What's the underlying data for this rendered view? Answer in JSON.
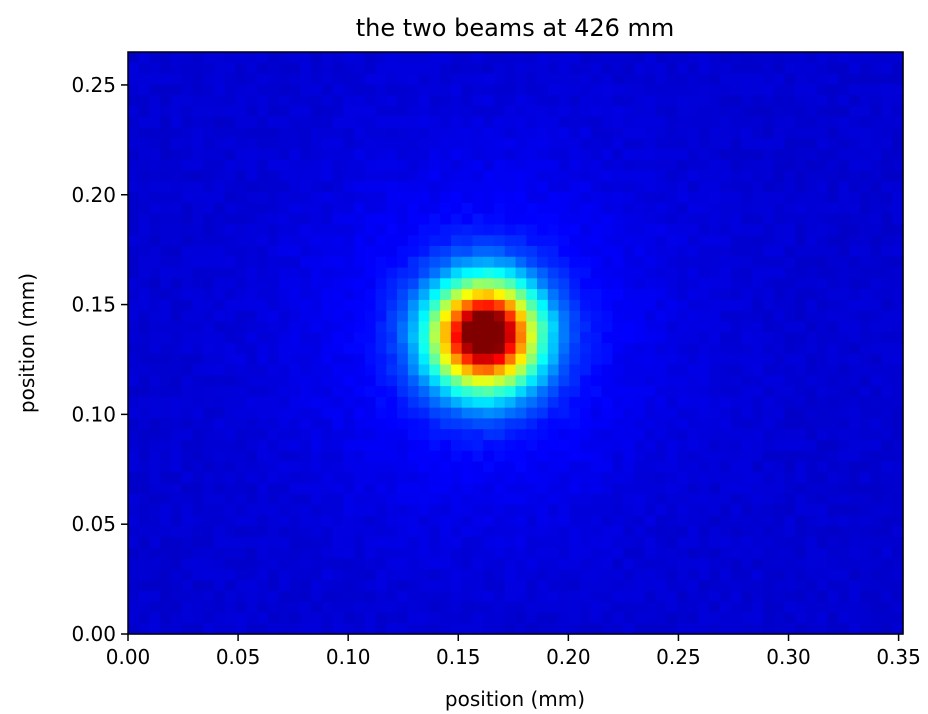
{
  "chart_data": {
    "type": "heatmap",
    "title": "the two beams at 426 mm",
    "xlabel": "position (mm)",
    "ylabel": "position (mm)",
    "xlim": [
      0.0,
      0.352
    ],
    "ylim": [
      0.0,
      0.265
    ],
    "x_ticks": [
      "0.00",
      "0.05",
      "0.10",
      "0.15",
      "0.20",
      "0.25",
      "0.30",
      "0.35"
    ],
    "y_ticks": [
      "0.00",
      "0.05",
      "0.10",
      "0.15",
      "0.20",
      "0.25"
    ],
    "colormap": "jet",
    "grid": false,
    "legend": "none",
    "image_resolution": [
      72,
      54
    ],
    "background_level": 0.08,
    "beams": [
      {
        "x_center": 0.162,
        "y_center": 0.136,
        "sigma": 0.0175,
        "peak": 0.92
      },
      {
        "x_center": 0.164,
        "y_center": 0.139,
        "sigma": 0.0075,
        "peak": 0.1
      }
    ],
    "halo": {
      "x_center": 0.162,
      "y_center": 0.136,
      "sigma": 0.055,
      "peak": 0.07
    }
  },
  "colors": {
    "background": "#ffffff",
    "axes": "#000000",
    "colormap_low": "#00007f",
    "colormap_high": "#7f0000"
  }
}
